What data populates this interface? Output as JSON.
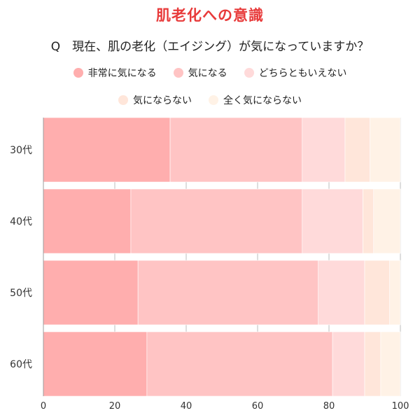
{
  "chart_data": {
    "type": "bar",
    "orientation": "horizontal",
    "stacked": true,
    "title": "肌老化への意識",
    "subtitle": "Q　現在、肌の老化（エイジング）が気になっていますか？",
    "categories": [
      "30代",
      "40代",
      "50代",
      "60代"
    ],
    "xlim": [
      0,
      100
    ],
    "xticks": [
      0,
      20,
      40,
      60,
      80,
      100
    ],
    "grid": true,
    "legend_position": "top",
    "series": [
      {
        "name": "非常に気になる",
        "color": "#ffaeae",
        "values": [
          35.5,
          24.5,
          26.5,
          29
        ]
      },
      {
        "name": "気になる",
        "color": "#ffc4c4",
        "values": [
          37,
          48,
          50.5,
          52
        ]
      },
      {
        "name": "どちらともいえない",
        "color": "#ffdada",
        "values": [
          12,
          17,
          13,
          9
        ]
      },
      {
        "name": "気にならない",
        "color": "#ffe6da",
        "values": [
          7,
          3,
          7,
          4.5
        ]
      },
      {
        "name": "全く気にならない",
        "color": "#fff2e6",
        "values": [
          8.5,
          7.5,
          3,
          5.5
        ]
      }
    ]
  }
}
